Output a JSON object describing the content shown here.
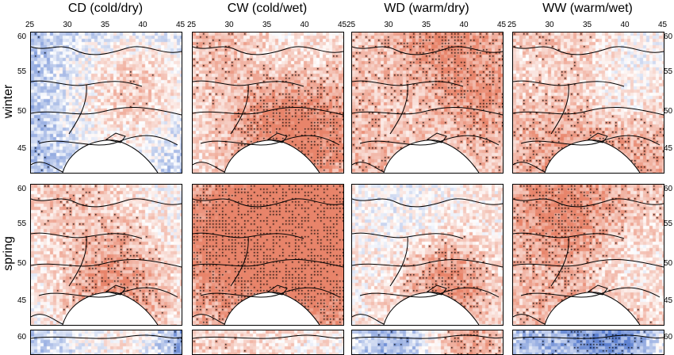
{
  "columns": [
    {
      "key": "CD",
      "label": "CD (cold/dry)",
      "tone": "cold"
    },
    {
      "key": "CW",
      "label": "CW (cold/wet)",
      "tone": "warm"
    },
    {
      "key": "WD",
      "label": "WD (warm/dry)",
      "tone": "warm"
    },
    {
      "key": "WW",
      "label": "WW (warm/wet)",
      "tone": "warm"
    }
  ],
  "rows": [
    {
      "key": "winter",
      "label": "winter"
    },
    {
      "key": "spring",
      "label": "spring"
    },
    {
      "key": "summer",
      "label": ""
    }
  ],
  "lon_ticks": [
    "25",
    "30",
    "35",
    "40",
    "45"
  ],
  "lat_ticks": [
    "60",
    "55",
    "50",
    "45"
  ],
  "colors": {
    "warm": "#e8846a",
    "cold": "#5b7fd0",
    "neutral": "#ffffff",
    "stipple": "#000000",
    "border": "#000000"
  }
}
